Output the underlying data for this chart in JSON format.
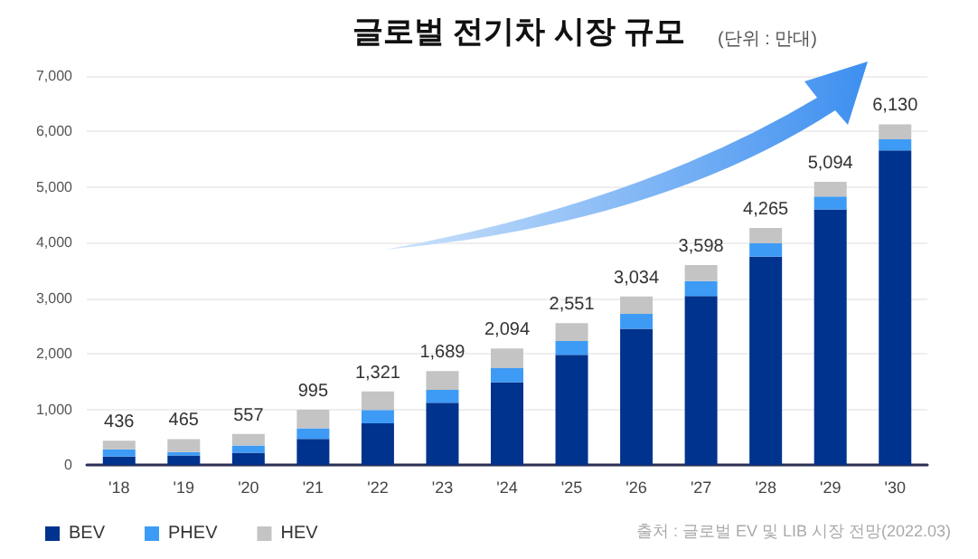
{
  "chart_data": {
    "type": "bar",
    "title": "글로벌 전기차 시장 규모",
    "subtitle": "(단위 : 만대)",
    "categories": [
      "'18",
      "'19",
      "'20",
      "'21",
      "'22",
      "'23",
      "'24",
      "'25",
      "'26",
      "'27",
      "'28",
      "'29",
      "'30"
    ],
    "stacked": true,
    "series": [
      {
        "name": "BEV",
        "color": "#00338d",
        "values": [
          150,
          170,
          220,
          470,
          750,
          1120,
          1490,
          1980,
          2450,
          3040,
          3750,
          4600,
          5660
        ]
      },
      {
        "name": "PHEV",
        "color": "#3d9bf5",
        "values": [
          130,
          60,
          130,
          190,
          240,
          230,
          250,
          250,
          270,
          270,
          240,
          230,
          200
        ]
      },
      {
        "name": "HEV",
        "color": "#c4c4c4",
        "values": [
          156,
          235,
          207,
          335,
          331,
          339,
          354,
          321,
          314,
          288,
          275,
          264,
          270
        ]
      }
    ],
    "totals": [
      "436",
      "465",
      "557",
      "995",
      "1,321",
      "1,689",
      "2,094",
      "2,551",
      "3,034",
      "3,598",
      "4,265",
      "5,094",
      "6,130"
    ],
    "ylim": [
      0,
      7000
    ],
    "yticks": [
      0,
      {
        "value": 1000,
        "label": "1,000"
      },
      {
        "value": 2000,
        "label": "2,000"
      },
      {
        "value": 3000,
        "label": "3,000"
      },
      {
        "value": 4000,
        "label": "4,000"
      },
      {
        "value": 5000,
        "label": "5,000"
      },
      {
        "value": 6000,
        "label": "6,000"
      },
      {
        "value": 7000,
        "label": "7,000"
      }
    ],
    "grid": "y",
    "legend": "bottom left",
    "annotations": [
      "출처 : 글로벌 EV 및 LIB 시장 전망(2022.03)"
    ]
  }
}
